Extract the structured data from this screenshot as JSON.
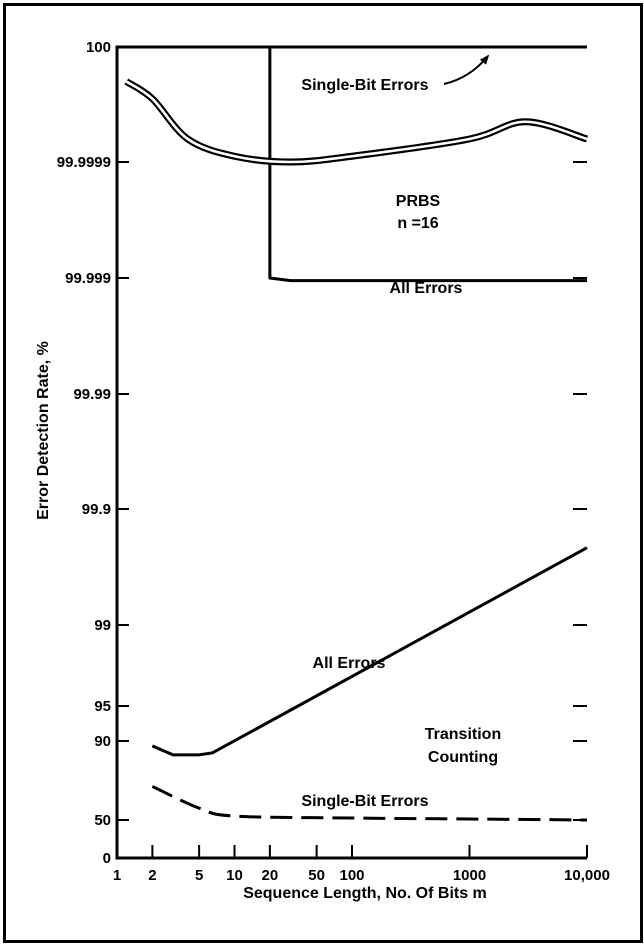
{
  "chart_data": {
    "type": "line",
    "xlabel": "Sequence Length, No. Of Bits m",
    "ylabel": "Error Detection Rate, %",
    "xscale": "log",
    "xlim": [
      1,
      10000
    ],
    "x_ticks": [
      {
        "value": 1,
        "label": "1"
      },
      {
        "value": 2,
        "label": "2"
      },
      {
        "value": 5,
        "label": "5"
      },
      {
        "value": 10,
        "label": "10"
      },
      {
        "value": 20,
        "label": "20"
      },
      {
        "value": 50,
        "label": "50"
      },
      {
        "value": 100,
        "label": "100"
      },
      {
        "value": 1000,
        "label": "1000"
      },
      {
        "value": 10000,
        "label": "10,000"
      }
    ],
    "y_ticks": [
      {
        "value": 0,
        "label": "0"
      },
      {
        "value": 50,
        "label": "50"
      },
      {
        "value": 90,
        "label": "90"
      },
      {
        "value": 95,
        "label": "95"
      },
      {
        "value": 99,
        "label": "99"
      },
      {
        "value": 99.9,
        "label": "99.9"
      },
      {
        "value": 99.99,
        "label": "99.99"
      },
      {
        "value": 99.999,
        "label": "99.999"
      },
      {
        "value": 99.9999,
        "label": "99.9999"
      },
      {
        "value": 100,
        "label": "100"
      }
    ],
    "series": [
      {
        "group": "PRBS n =16",
        "label": "Single-Bit Errors",
        "style": "solid",
        "points": [
          [
            20,
            100
          ],
          [
            10000,
            100
          ]
        ]
      },
      {
        "group": "PRBS n =16",
        "label": "All Errors",
        "style": "solid",
        "points": [
          [
            20,
            100
          ],
          [
            20,
            99.999
          ],
          [
            30,
            99.9988
          ],
          [
            10000,
            99.9988
          ]
        ]
      },
      {
        "group": "Transition Counting",
        "label": "All Errors",
        "style": "solid",
        "points": [
          [
            2,
            87.5
          ],
          [
            3,
            83
          ],
          [
            5,
            83
          ],
          [
            6.5,
            84
          ],
          [
            10000,
            99.6
          ]
        ]
      },
      {
        "group": "Transition Counting",
        "label": "Single-Bit Errors",
        "style": "dashed",
        "points": [
          [
            2,
            67
          ],
          [
            5,
            56
          ],
          [
            10,
            52
          ],
          [
            100,
            51
          ],
          [
            1000,
            50.5
          ],
          [
            10000,
            50
          ]
        ]
      },
      {
        "group": "",
        "label": "",
        "style": "double",
        "points": [
          [
            1.2,
            99.99997
          ],
          [
            2,
            99.999955
          ],
          [
            4,
            99.99992
          ],
          [
            10,
            99.999905
          ],
          [
            30,
            99.9999
          ],
          [
            100,
            99.999905
          ],
          [
            1000,
            99.99992
          ],
          [
            3000,
            99.999935
          ],
          [
            10000,
            99.99992
          ]
        ]
      }
    ],
    "annotations": [
      {
        "text": "Single-Bit Errors"
      },
      {
        "text": "PRBS"
      },
      {
        "text": "n =16"
      },
      {
        "text": "All Errors"
      },
      {
        "text": "All Errors"
      },
      {
        "text": "Transition"
      },
      {
        "text": "Counting"
      },
      {
        "text": "Single-Bit Errors"
      }
    ],
    "grid": false
  }
}
